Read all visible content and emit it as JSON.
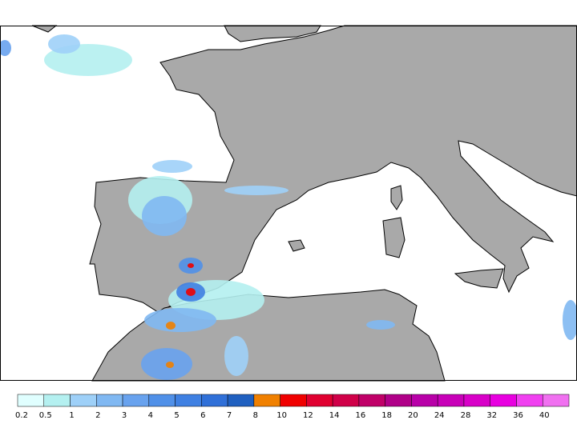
{
  "legend": {
    "items": [
      {
        "label": "0.2",
        "color": "#e0ffff"
      },
      {
        "label": "0.5",
        "color": "#b4f0f0"
      },
      {
        "label": "1",
        "color": "#9ed0f8"
      },
      {
        "label": "2",
        "color": "#80b8f2"
      },
      {
        "label": "3",
        "color": "#68a2ee"
      },
      {
        "label": "4",
        "color": "#5090e8"
      },
      {
        "label": "5",
        "color": "#3f80e2"
      },
      {
        "label": "6",
        "color": "#3070d8"
      },
      {
        "label": "7",
        "color": "#2060c0"
      },
      {
        "label": "8",
        "color": "#f08000"
      },
      {
        "label": "10",
        "color": "#f00000"
      },
      {
        "label": "12",
        "color": "#e00030"
      },
      {
        "label": "14",
        "color": "#d00048"
      },
      {
        "label": "16",
        "color": "#c00068"
      },
      {
        "label": "18",
        "color": "#b00088"
      },
      {
        "label": "20",
        "color": "#b800a8"
      },
      {
        "label": "24",
        "color": "#c800b8"
      },
      {
        "label": "28",
        "color": "#d800c8"
      },
      {
        "label": "32",
        "color": "#e800e0"
      },
      {
        "label": "36",
        "color": "#f040f0"
      },
      {
        "label": "40",
        "color": "#f070f0"
      }
    ]
  }
}
